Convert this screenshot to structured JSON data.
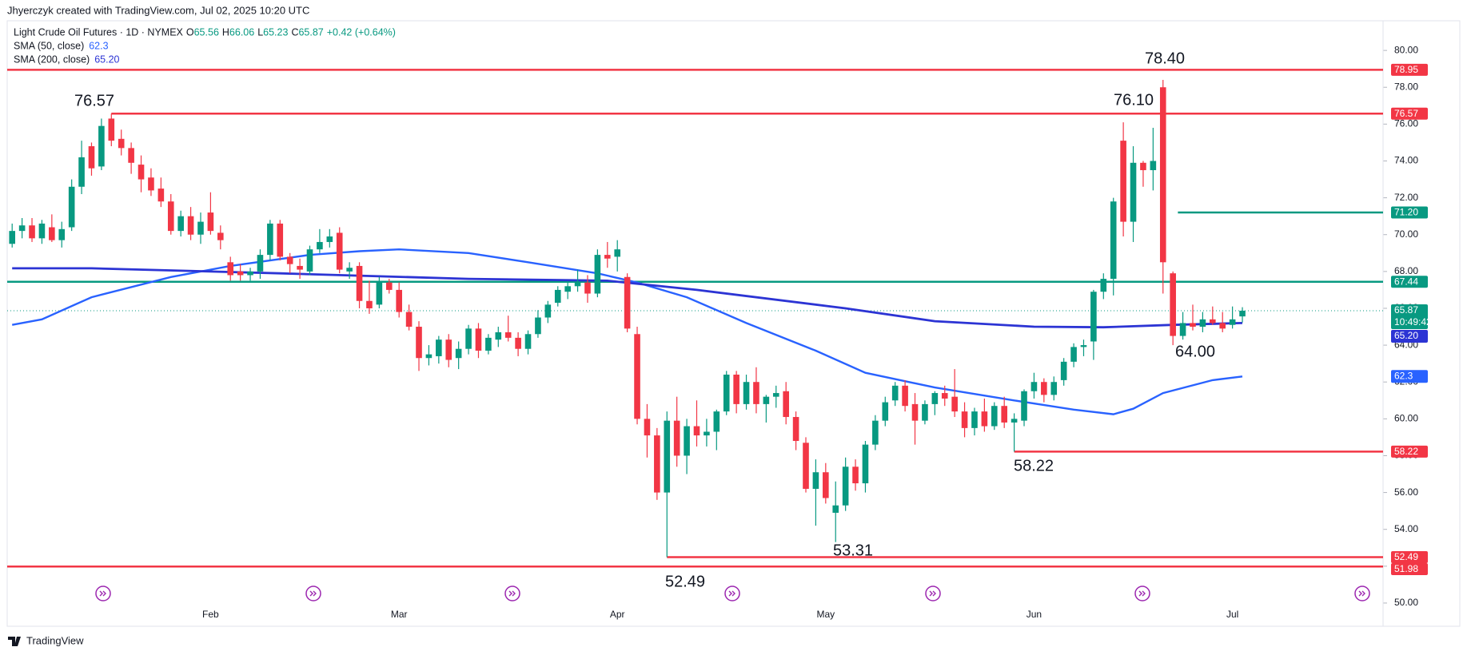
{
  "attribution": "Jhyerczyk created with TradingView.com, Jul 02, 2025 10:20 UTC",
  "footer": "TradingView",
  "chart_data": {
    "type": "candlestick",
    "title": "Light Crude Oil Futures · 1D · NYMEX",
    "ohlc_legend": [
      {
        "key": "O",
        "value": "65.56"
      },
      {
        "key": "H",
        "value": "66.06"
      },
      {
        "key": "L",
        "value": "65.23"
      },
      {
        "key": "C",
        "value": "65.87"
      }
    ],
    "change": "+0.42 (+0.64%)",
    "up_color": "#089981",
    "down_color": "#f23645",
    "categories": [
      null,
      null,
      null,
      null,
      null,
      null,
      null,
      null,
      null,
      null,
      null,
      null,
      null,
      null,
      null,
      null,
      null,
      null,
      null,
      null,
      "Feb",
      null,
      null,
      null,
      null,
      null,
      null,
      null,
      null,
      null,
      null,
      null,
      null,
      null,
      null,
      null,
      null,
      null,
      null,
      "Mar",
      null,
      null,
      null,
      null,
      null,
      null,
      null,
      null,
      null,
      null,
      null,
      null,
      null,
      null,
      null,
      null,
      null,
      null,
      null,
      null,
      null,
      "Apr",
      null,
      null,
      null,
      null,
      null,
      null,
      null,
      null,
      null,
      null,
      null,
      null,
      null,
      null,
      null,
      null,
      null,
      null,
      null,
      null,
      "May",
      null,
      null,
      null,
      null,
      null,
      null,
      null,
      null,
      null,
      null,
      null,
      null,
      null,
      null,
      null,
      null,
      null,
      null,
      null,
      null,
      "Jun",
      null,
      null,
      null,
      null,
      null,
      null,
      null,
      null,
      null,
      null,
      null,
      null,
      null,
      null,
      null,
      null,
      null,
      null,
      null,
      "Jul",
      null
    ],
    "candles": [
      [
        69.5,
        70.6,
        69.3,
        70.2
      ],
      [
        70.2,
        70.9,
        69.8,
        70.5
      ],
      [
        70.5,
        70.9,
        69.6,
        69.8
      ],
      [
        69.8,
        70.8,
        69.5,
        70.6
      ],
      [
        70.4,
        71.1,
        69.6,
        69.7
      ],
      [
        69.7,
        70.7,
        69.3,
        70.3
      ],
      [
        70.4,
        73.0,
        70.2,
        72.6
      ],
      [
        72.6,
        75.1,
        72.2,
        74.2
      ],
      [
        74.8,
        75.0,
        73.2,
        73.6
      ],
      [
        73.7,
        76.3,
        73.5,
        75.9
      ],
      [
        76.3,
        76.57,
        74.8,
        75.1
      ],
      [
        75.2,
        75.7,
        74.3,
        74.7
      ],
      [
        74.7,
        75.0,
        73.3,
        73.9
      ],
      [
        73.8,
        74.3,
        72.3,
        73.0
      ],
      [
        73.1,
        73.6,
        72.1,
        72.4
      ],
      [
        72.5,
        73.1,
        71.5,
        71.8
      ],
      [
        71.8,
        72.2,
        70.0,
        70.2
      ],
      [
        70.2,
        71.3,
        69.9,
        71.0
      ],
      [
        71.0,
        71.5,
        69.7,
        70.0
      ],
      [
        70.0,
        71.2,
        69.5,
        70.7
      ],
      [
        71.2,
        72.3,
        70.0,
        70.2
      ],
      [
        70.1,
        70.5,
        69.2,
        69.7
      ],
      [
        68.5,
        68.8,
        67.5,
        67.8
      ],
      [
        68.0,
        68.4,
        67.5,
        67.8
      ],
      [
        67.8,
        68.2,
        67.5,
        68.0
      ],
      [
        68.0,
        69.2,
        67.6,
        68.9
      ],
      [
        68.9,
        70.8,
        68.6,
        70.6
      ],
      [
        70.6,
        70.8,
        68.6,
        68.8
      ],
      [
        68.8,
        69.0,
        67.9,
        68.4
      ],
      [
        68.3,
        68.7,
        67.6,
        68.1
      ],
      [
        68.0,
        69.4,
        67.8,
        69.2
      ],
      [
        69.2,
        70.3,
        69.0,
        69.6
      ],
      [
        69.6,
        70.3,
        69.3,
        69.9
      ],
      [
        70.1,
        70.4,
        67.9,
        68.1
      ],
      [
        68.0,
        68.5,
        67.6,
        68.2
      ],
      [
        68.3,
        68.5,
        66.0,
        66.4
      ],
      [
        66.4,
        67.5,
        65.7,
        66.0
      ],
      [
        66.2,
        67.7,
        66.0,
        67.4
      ],
      [
        67.4,
        67.6,
        66.8,
        67.0
      ],
      [
        67.0,
        67.4,
        65.5,
        65.8
      ],
      [
        65.8,
        66.2,
        64.8,
        65.0
      ],
      [
        65.0,
        65.3,
        62.6,
        63.3
      ],
      [
        63.3,
        64.0,
        62.9,
        63.5
      ],
      [
        63.4,
        64.5,
        63.0,
        64.3
      ],
      [
        64.3,
        64.6,
        62.8,
        63.2
      ],
      [
        63.3,
        64.2,
        62.7,
        63.8
      ],
      [
        63.8,
        65.1,
        63.5,
        64.9
      ],
      [
        64.9,
        65.2,
        63.3,
        63.7
      ],
      [
        63.7,
        64.6,
        63.5,
        64.4
      ],
      [
        64.3,
        65.0,
        63.9,
        64.7
      ],
      [
        64.7,
        65.6,
        64.2,
        64.4
      ],
      [
        64.4,
        64.7,
        63.4,
        63.8
      ],
      [
        63.8,
        64.8,
        63.5,
        64.6
      ],
      [
        64.6,
        65.9,
        64.4,
        65.5
      ],
      [
        65.5,
        66.4,
        65.2,
        66.2
      ],
      [
        66.3,
        67.2,
        66.1,
        67.0
      ],
      [
        66.9,
        67.4,
        66.5,
        67.2
      ],
      [
        67.2,
        68.1,
        66.9,
        67.4
      ],
      [
        67.4,
        67.8,
        66.3,
        66.8
      ],
      [
        66.8,
        69.2,
        66.6,
        68.9
      ],
      [
        68.9,
        69.6,
        68.2,
        68.7
      ],
      [
        68.8,
        69.7,
        68.0,
        69.2
      ],
      [
        67.7,
        67.9,
        64.7,
        64.9
      ],
      [
        64.6,
        65.0,
        59.7,
        60.0
      ],
      [
        60.0,
        60.8,
        57.9,
        59.1
      ],
      [
        59.1,
        59.5,
        55.6,
        56.0
      ],
      [
        56.0,
        60.4,
        52.49,
        59.9
      ],
      [
        59.9,
        61.2,
        57.4,
        58.0
      ],
      [
        58.0,
        60.0,
        57.0,
        59.6
      ],
      [
        59.6,
        61.0,
        58.5,
        59.1
      ],
      [
        59.1,
        60.0,
        58.5,
        59.3
      ],
      [
        59.3,
        60.5,
        58.3,
        60.4
      ],
      [
        60.4,
        62.6,
        60.2,
        62.4
      ],
      [
        62.4,
        62.6,
        60.3,
        60.8
      ],
      [
        60.8,
        62.4,
        60.5,
        62.0
      ],
      [
        62.0,
        62.8,
        60.3,
        60.8
      ],
      [
        60.8,
        61.3,
        59.8,
        61.2
      ],
      [
        61.2,
        61.8,
        60.6,
        61.4
      ],
      [
        61.5,
        62.0,
        59.7,
        60.1
      ],
      [
        60.1,
        60.4,
        58.3,
        58.8
      ],
      [
        58.7,
        59.0,
        56.0,
        56.2
      ],
      [
        56.2,
        57.8,
        54.2,
        57.1
      ],
      [
        57.1,
        57.6,
        55.4,
        55.7
      ],
      [
        54.9,
        56.6,
        53.31,
        55.3
      ],
      [
        55.3,
        57.9,
        55.0,
        57.4
      ],
      [
        57.4,
        57.8,
        56.1,
        56.5
      ],
      [
        56.5,
        58.8,
        56.0,
        58.6
      ],
      [
        58.6,
        60.2,
        58.3,
        59.9
      ],
      [
        59.9,
        61.2,
        59.6,
        60.9
      ],
      [
        61.0,
        62.0,
        60.7,
        61.8
      ],
      [
        61.8,
        62.1,
        60.4,
        60.7
      ],
      [
        60.8,
        61.4,
        58.6,
        59.9
      ],
      [
        59.9,
        61.0,
        59.7,
        60.8
      ],
      [
        60.8,
        61.5,
        60.2,
        61.4
      ],
      [
        61.4,
        61.8,
        60.7,
        61.1
      ],
      [
        61.2,
        62.7,
        60.1,
        60.4
      ],
      [
        60.4,
        60.9,
        59.0,
        59.5
      ],
      [
        59.5,
        60.6,
        59.1,
        60.4
      ],
      [
        60.4,
        61.1,
        59.3,
        59.6
      ],
      [
        59.6,
        60.9,
        59.4,
        60.7
      ],
      [
        60.7,
        61.2,
        59.5,
        59.8
      ],
      [
        59.8,
        60.3,
        58.22,
        60.0
      ],
      [
        59.9,
        61.6,
        59.6,
        61.5
      ],
      [
        61.5,
        62.5,
        61.1,
        62.0
      ],
      [
        62.0,
        62.2,
        60.9,
        61.3
      ],
      [
        61.3,
        62.3,
        61.0,
        62.0
      ],
      [
        62.1,
        63.3,
        61.8,
        63.1
      ],
      [
        63.1,
        64.1,
        62.8,
        63.9
      ],
      [
        63.9,
        64.3,
        63.4,
        64.0
      ],
      [
        64.2,
        67.0,
        63.2,
        66.9
      ],
      [
        66.9,
        67.9,
        66.5,
        67.6
      ],
      [
        67.6,
        72.0,
        66.7,
        71.8
      ],
      [
        75.1,
        76.1,
        69.9,
        70.7
      ],
      [
        70.7,
        74.8,
        69.6,
        73.9
      ],
      [
        73.9,
        74.0,
        72.6,
        73.5
      ],
      [
        73.5,
        75.8,
        72.4,
        74.0
      ],
      [
        78.0,
        78.4,
        66.8,
        68.5
      ],
      [
        67.9,
        68.0,
        64.0,
        64.5
      ],
      [
        64.5,
        65.8,
        64.3,
        65.2
      ],
      [
        65.2,
        66.2,
        64.8,
        65.0
      ],
      [
        65.0,
        65.8,
        64.7,
        65.4
      ],
      [
        65.4,
        66.1,
        65.1,
        65.2
      ],
      [
        65.2,
        65.8,
        64.7,
        64.9
      ],
      [
        65.1,
        66.1,
        64.9,
        65.4
      ],
      [
        65.56,
        66.06,
        65.23,
        65.87
      ]
    ],
    "series": [
      {
        "name": "SMA (50, close)",
        "color": "#2962ff",
        "legend_value": "62.3",
        "x": [
          0,
          3,
          8,
          16,
          22,
          30,
          35,
          39,
          46,
          52,
          59,
          63,
          68,
          74,
          81,
          86,
          93,
          101,
          107,
          111,
          113,
          116,
          121,
          124
        ],
        "values": [
          65.1,
          65.4,
          66.6,
          67.7,
          68.3,
          68.9,
          69.1,
          69.2,
          69.0,
          68.5,
          67.9,
          67.4,
          66.6,
          65.2,
          63.7,
          62.5,
          61.7,
          61.0,
          60.5,
          60.25,
          60.55,
          61.4,
          62.1,
          62.3
        ]
      },
      {
        "name": "SMA (200, close)",
        "color": "#2c34d4",
        "legend_value": "65.20",
        "x": [
          0,
          8,
          27,
          46,
          60,
          69,
          84,
          93,
          103,
          110,
          117,
          124
        ],
        "values": [
          68.17,
          68.17,
          67.9,
          67.6,
          67.5,
          67.0,
          66.0,
          65.3,
          65.0,
          64.97,
          65.1,
          65.2
        ]
      }
    ],
    "levels": [
      {
        "value": 78.95,
        "label": "78.95",
        "color": "#f23645"
      },
      {
        "value": 76.57,
        "label": "76.57",
        "color": "#f23645"
      },
      {
        "value": 71.2,
        "label": "71.20",
        "color": "#089981"
      },
      {
        "value": 67.44,
        "label": "67.44",
        "color": "#089981"
      },
      {
        "value": 58.22,
        "label": "58.22",
        "color": "#f23645"
      },
      {
        "value": 52.49,
        "label": "52.49",
        "color": "#f23645"
      },
      {
        "value": 51.98,
        "label": "51.98",
        "color": "#f23645"
      }
    ],
    "last": {
      "value": 65.87,
      "label": "65.87",
      "countdown": "10:49:42",
      "color": "#089981"
    },
    "annotations": [
      "76.57",
      "78.40",
      "76.10",
      "64.00",
      "58.22",
      "53.31",
      "52.49"
    ],
    "ylim": [
      48.74,
      81.61
    ],
    "yticks": [
      {
        "value": 50,
        "label": "50.00"
      },
      {
        "value": 52,
        "label": "52.00"
      },
      {
        "value": 54,
        "label": "54.00"
      },
      {
        "value": 56,
        "label": "56.00"
      },
      {
        "value": 58,
        "label": "58.00"
      },
      {
        "value": 60,
        "label": "60.00"
      },
      {
        "value": 62,
        "label": "62.00"
      },
      {
        "value": 64,
        "label": "64.00"
      },
      {
        "value": 66,
        "label": "66.00"
      },
      {
        "value": 68,
        "label": "68.00"
      },
      {
        "value": 70,
        "label": "70.00"
      },
      {
        "value": 72,
        "label": "72.00"
      },
      {
        "value": 74,
        "label": "74.00"
      },
      {
        "value": 76,
        "label": "76.00"
      },
      {
        "value": 78,
        "label": "78.00"
      },
      {
        "value": 80,
        "label": "80.00"
      }
    ]
  }
}
